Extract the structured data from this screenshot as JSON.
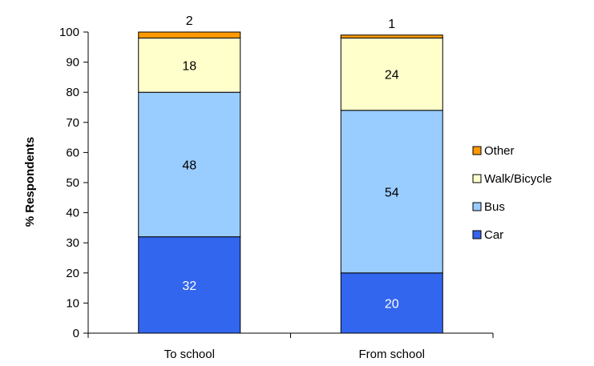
{
  "chart_data": {
    "type": "bar",
    "stacked": true,
    "title": "",
    "xlabel": "",
    "ylabel": "% Respondents",
    "ylim": [
      0,
      100
    ],
    "yticks": [
      0,
      10,
      20,
      30,
      40,
      50,
      60,
      70,
      80,
      90,
      100
    ],
    "grid": false,
    "legend_position": "right",
    "categories": [
      "To school",
      "From school"
    ],
    "series": [
      {
        "name": "Car",
        "values": [
          32,
          20
        ],
        "color": "#3366ee",
        "label_color": "#ffffff"
      },
      {
        "name": "Bus",
        "values": [
          48,
          54
        ],
        "color": "#99ccff",
        "label_color": "#000000"
      },
      {
        "name": "Walk/Bicycle",
        "values": [
          18,
          24
        ],
        "color": "#ffffcc",
        "label_color": "#000000"
      },
      {
        "name": "Other",
        "values": [
          2,
          1
        ],
        "color": "#ff9900",
        "label_color": "#000000"
      }
    ],
    "legend_order": [
      "Other",
      "Walk/Bicycle",
      "Bus",
      "Car"
    ]
  }
}
